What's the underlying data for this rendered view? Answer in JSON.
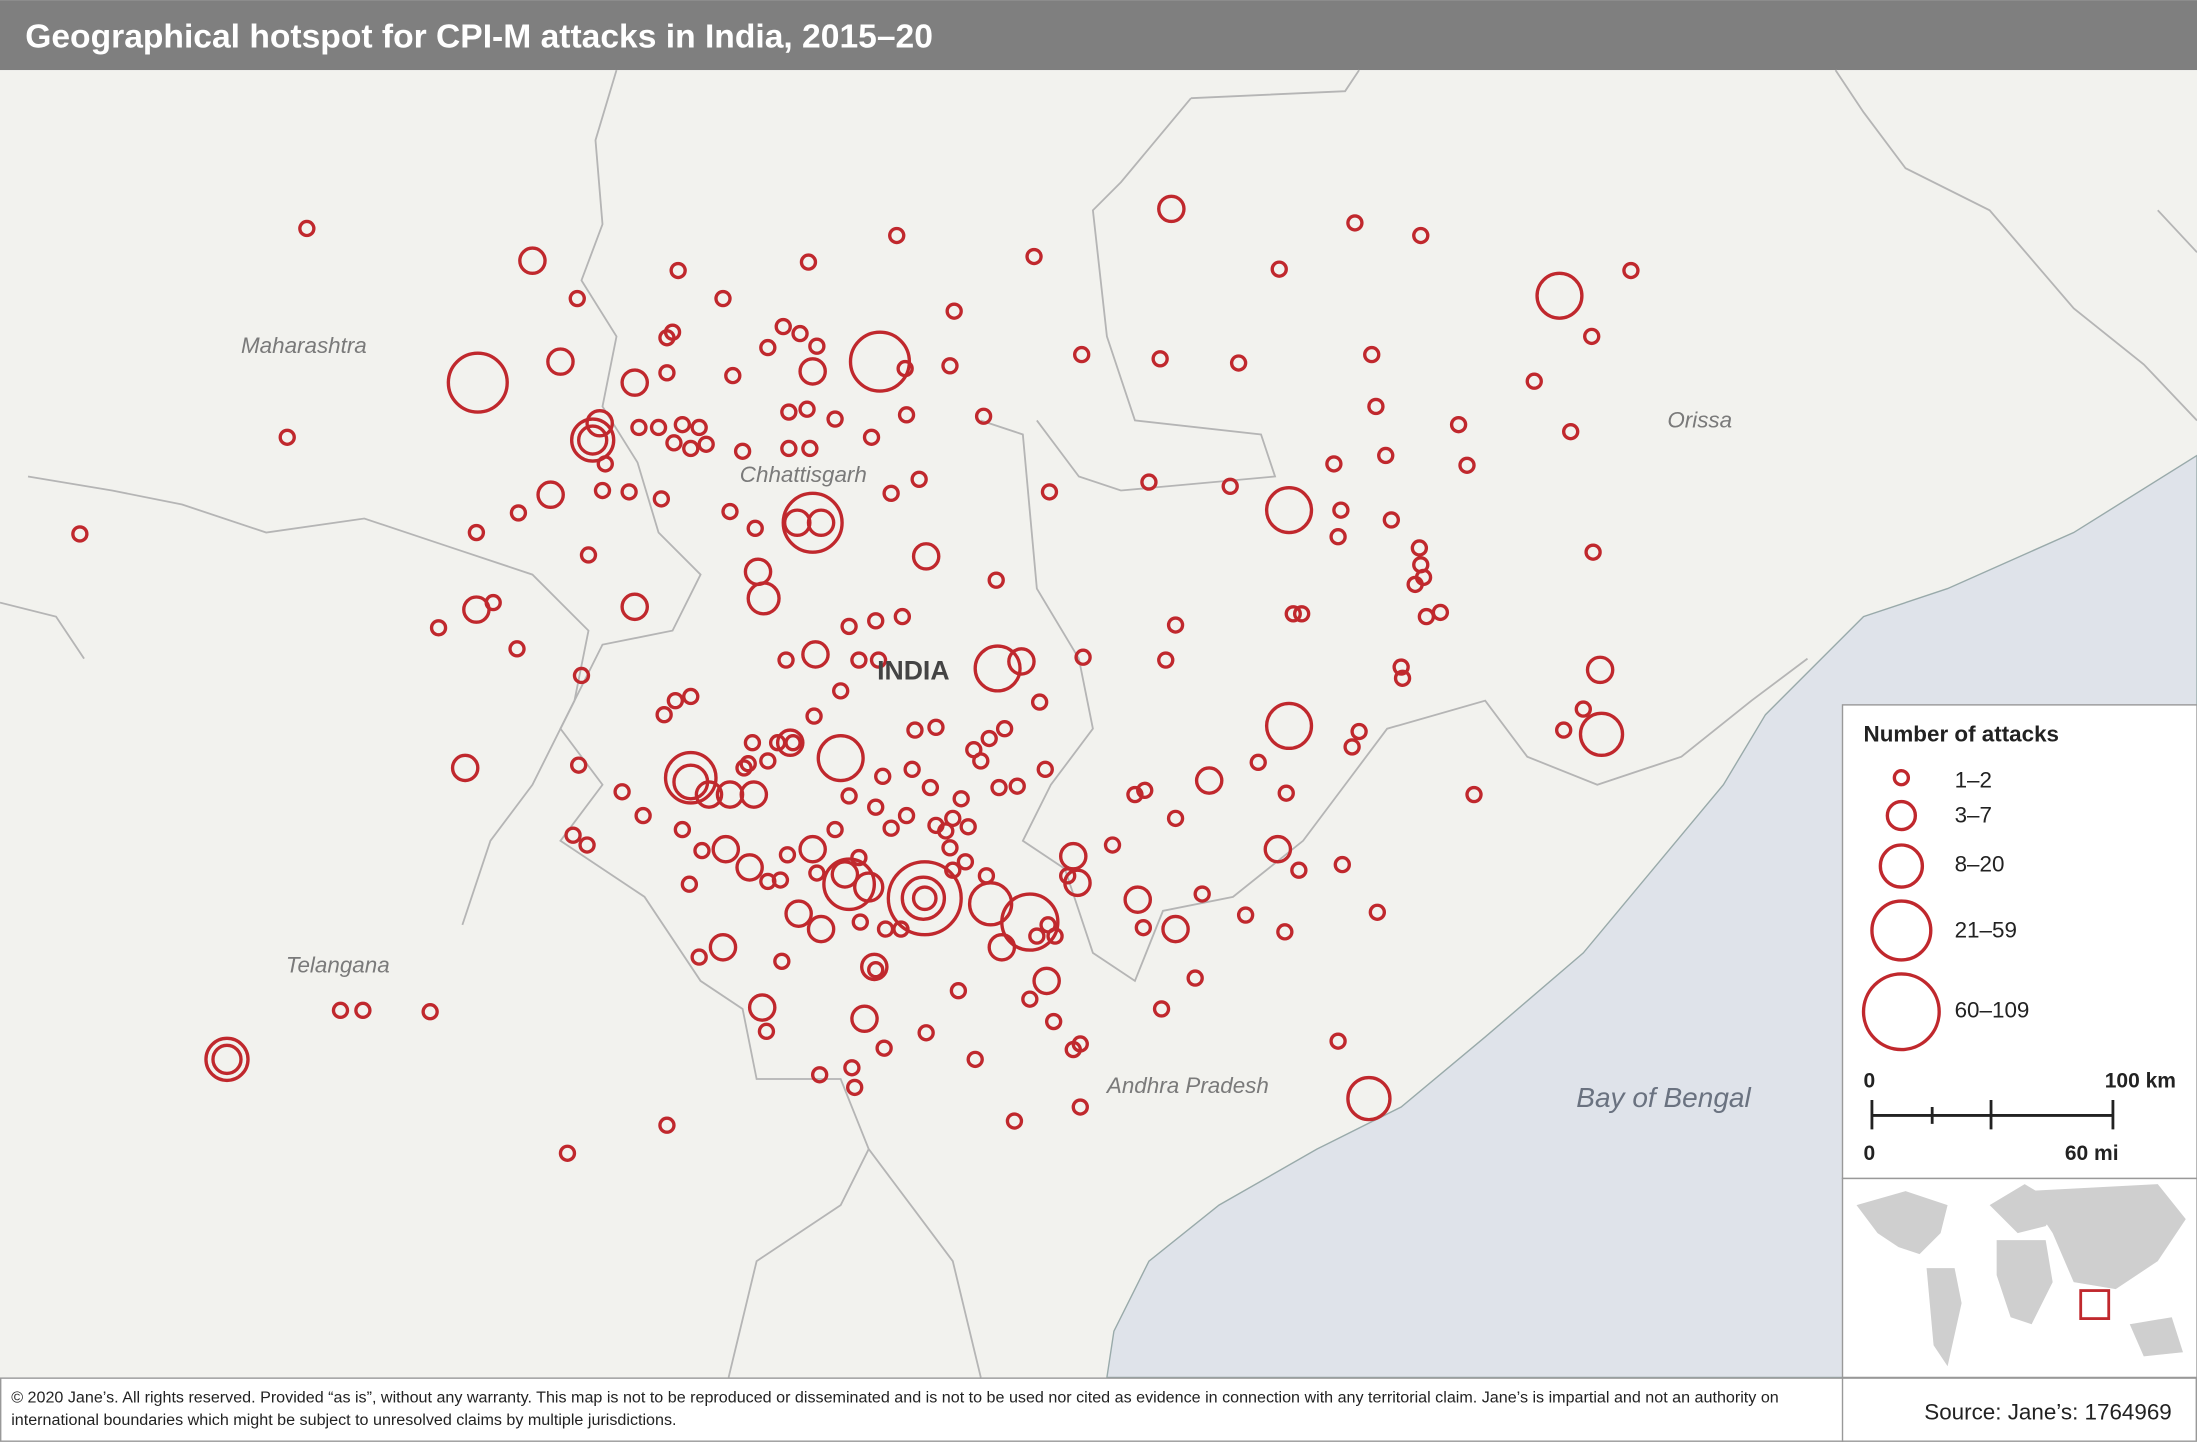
{
  "title": "Geographical hotspot for CPI-M attacks in India, 2015–20",
  "places": [
    "Maharashtra",
    "Chhattisgarh",
    "INDIA",
    "Orissa",
    "Telangana",
    "Andhra Pradesh",
    "Bay of Bengal"
  ],
  "legend": {
    "title": "Number of attacks",
    "items": [
      "1–2",
      "3–7",
      "8–20",
      "21–59",
      "60–109"
    ]
  },
  "scale": {
    "km_zero": "0",
    "km": "100 km",
    "mi_zero": "0",
    "mi": "60 mi"
  },
  "footer": {
    "copyright": [
      "© 2020 Jane’s. All rights reserved. Provided “as is”, without any warranty. This map is not to be reproduced or disseminated and is not to be used nor cited as evidence in connection with any territorial claim. Jane’s is impartial and not an authority on",
      "international boundaries which might be subject to unresolved claims by multiple jurisdictions."
    ],
    "source": "Source: Jane’s: 1764969"
  }
}
